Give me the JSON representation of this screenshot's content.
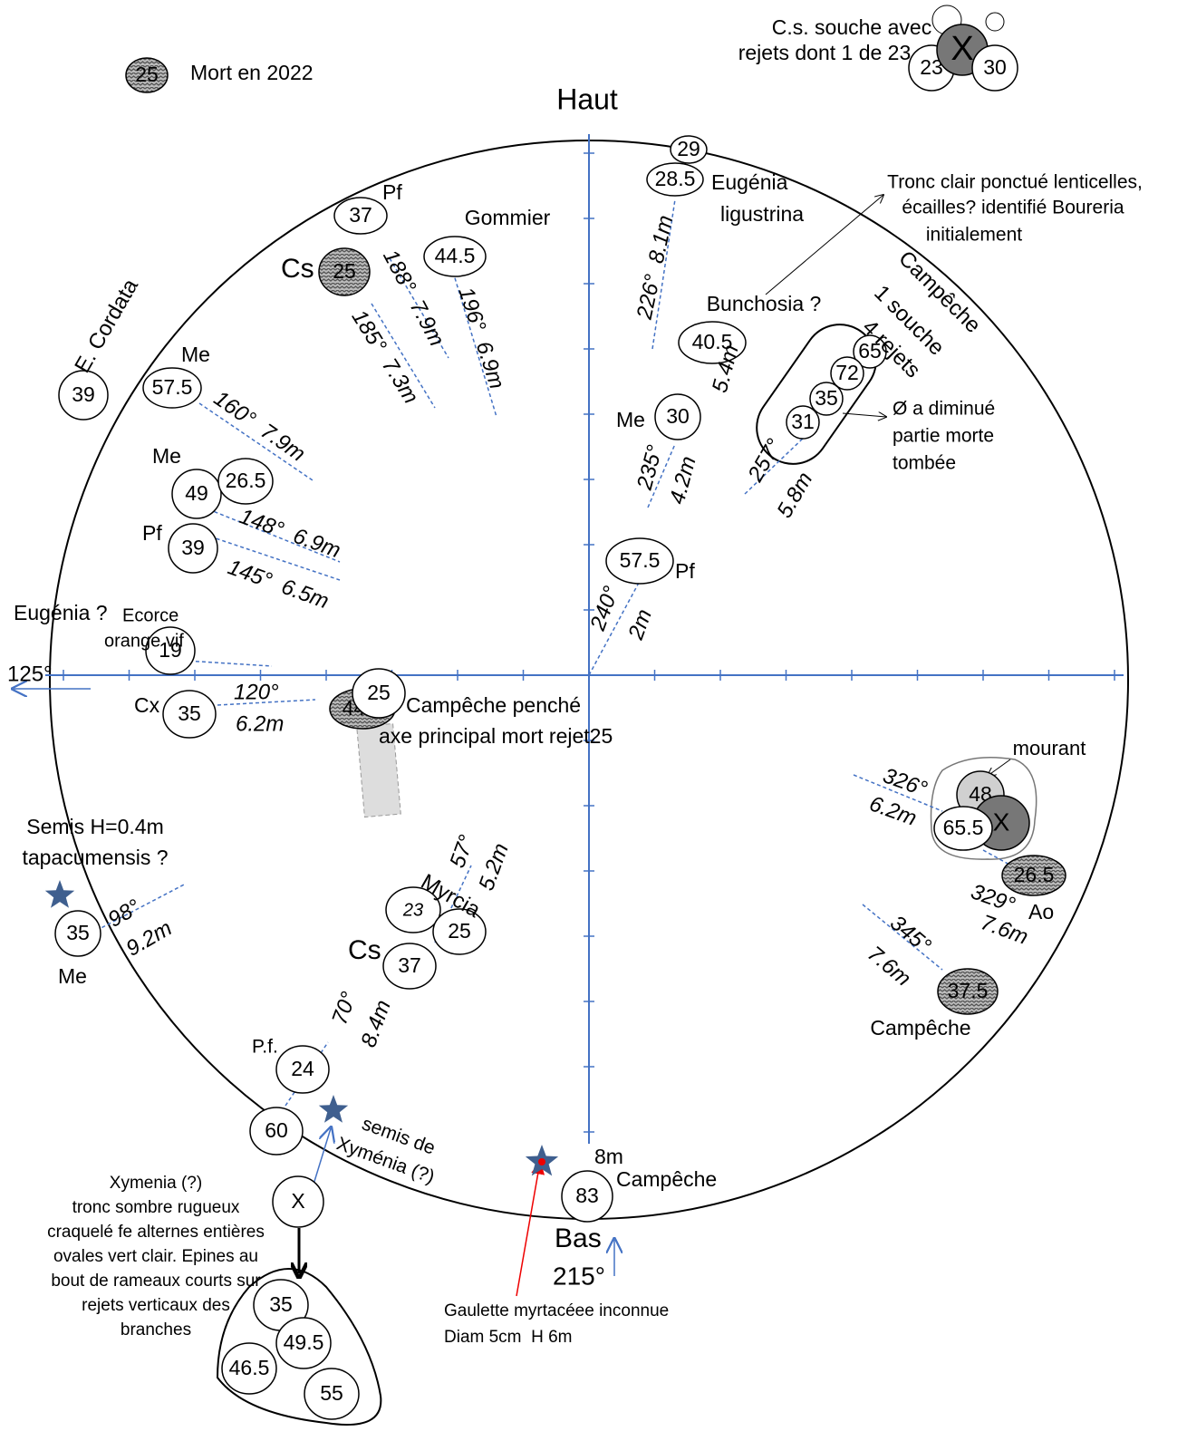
{
  "trees": [
    "29",
    "28.5",
    "37",
    "25",
    "44.5",
    "57.5",
    "39",
    "40.5",
    "65",
    "72",
    "35",
    "31",
    "30",
    "49",
    "26.5",
    "39",
    "57.5",
    "19",
    "35",
    "44.5",
    "25",
    "48",
    "X",
    "65.5",
    "26.5",
    "37.5",
    "23",
    "25",
    "37",
    "35",
    "24",
    "60",
    "X",
    "83",
    "35",
    "49.5",
    "46.5",
    "55",
    "23",
    "X",
    "30",
    "25"
  ],
  "notes": [
    "Mort en 2022",
    "C.s. souche avec",
    "rejets dont 1 de 23",
    "Haut",
    "Pf",
    "Gommier",
    "Eugénia",
    "ligustrina",
    "Tronc clair ponctué lenticelles,",
    "écailles? identifié Boureria",
    "initialement",
    "Cs",
    "E. Cordata",
    "Me",
    "Bunchosia ?",
    "Campêche",
    "1 souche",
    "4 rejets",
    "Me",
    "Ø a diminué",
    "partie morte",
    "tombée",
    "Me",
    "Pf",
    "Pf",
    "Eugénia ?",
    "Ecorce",
    "orange vif",
    "125°",
    "Cx",
    "Campêche penché",
    "axe principal mort rejet25",
    "mourant",
    "Ao",
    "Semis H=0.4m",
    "tapacumensis ?",
    "Myrcia",
    "Cs",
    "Me",
    "Campêche",
    "P.f.",
    "semis de",
    "Xyménia (?)",
    "8m",
    "Campêche",
    "Bas",
    "215°",
    "Xymenia (?)",
    "tronc sombre rugueux",
    "craquelé fe alternes entières",
    "ovales vert clair. Epines au",
    "bout de rameaux courts sur",
    "rejets verticaux des",
    "branches",
    "Gaulette myrtacéee inconnue",
    "Diam 5cm  H 6m"
  ],
  "bearings": [
    "188°  7.9m",
    "185°  7.3m",
    "196°  6.9m",
    "226°  8.1m",
    "160°  7.9m",
    "5.4m",
    "235°",
    "4.2m",
    "257°",
    "5.8m",
    "148°  6.9m",
    "145°  6.5m",
    "240°",
    "2m",
    "120°",
    "6.2m",
    "326°",
    "6.2m",
    "329°",
    "7.6m",
    "345°",
    "7.6m",
    "57°",
    "5.2m",
    "98°",
    "9.2m",
    "70°",
    "8.4m"
  ]
}
